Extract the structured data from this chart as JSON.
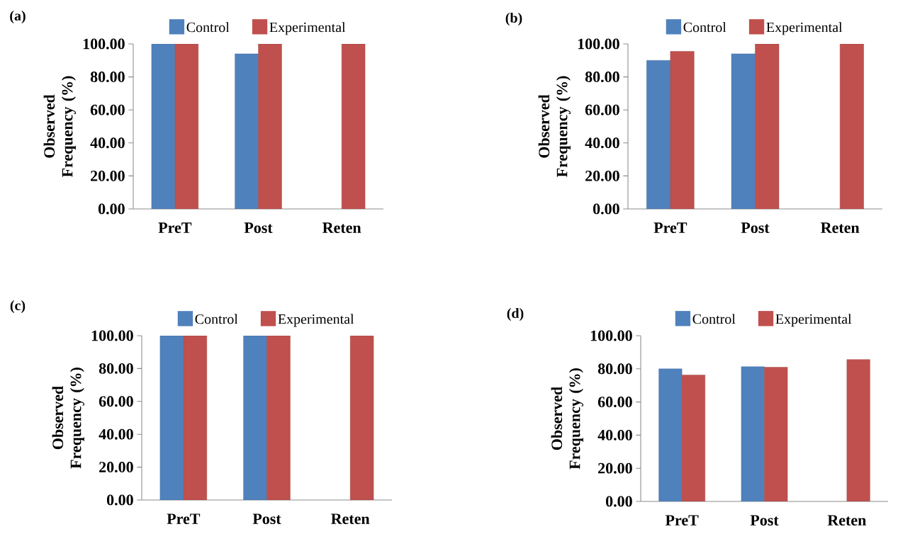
{
  "chart_data": [
    {
      "type": "bar",
      "title": "(a)",
      "ylabel": "Observed Frequency (%)",
      "categories": [
        "PreT",
        "Post",
        "Reten"
      ],
      "series": [
        {
          "name": "Control",
          "color": "#4f81bd",
          "values": [
            100,
            94,
            null
          ]
        },
        {
          "name": "Experimental",
          "color": "#c0504d",
          "values": [
            100,
            100,
            100
          ]
        }
      ],
      "ylim": [
        0,
        100
      ],
      "yticks": [
        {
          "value": 0,
          "label": "0.00"
        },
        {
          "value": 20,
          "label": "20.00"
        },
        {
          "value": 40,
          "label": "40.00"
        },
        {
          "value": 60,
          "label": "60.00"
        },
        {
          "value": 80,
          "label": "80.00"
        },
        {
          "value": 100,
          "label": "100.00"
        }
      ],
      "legend": "top"
    },
    {
      "type": "bar",
      "title": "(b)",
      "ylabel": "Observed Frequency (%)",
      "categories": [
        "PreT",
        "Post",
        "Reten"
      ],
      "series": [
        {
          "name": "Control",
          "color": "#4f81bd",
          "values": [
            90,
            94,
            null
          ]
        },
        {
          "name": "Experimental",
          "color": "#c0504d",
          "values": [
            95.5,
            100,
            100
          ]
        }
      ],
      "ylim": [
        0,
        100
      ],
      "yticks": [
        {
          "value": 0,
          "label": "0.00"
        },
        {
          "value": 20,
          "label": "20.00"
        },
        {
          "value": 40,
          "label": "40.00"
        },
        {
          "value": 60,
          "label": "60.00"
        },
        {
          "value": 80,
          "label": "80.00"
        },
        {
          "value": 100,
          "label": "100.00"
        }
      ],
      "legend": "top"
    },
    {
      "type": "bar",
      "title": "(c)",
      "ylabel": "Observed Frequency (%)",
      "categories": [
        "PreT",
        "Post",
        "Reten"
      ],
      "series": [
        {
          "name": "Control",
          "color": "#4f81bd",
          "values": [
            100,
            100,
            null
          ]
        },
        {
          "name": "Experimental",
          "color": "#c0504d",
          "values": [
            100,
            100,
            100
          ]
        }
      ],
      "ylim": [
        0,
        100
      ],
      "yticks": [
        {
          "value": 0,
          "label": "0.00"
        },
        {
          "value": 20,
          "label": "20.00"
        },
        {
          "value": 40,
          "label": "40.00"
        },
        {
          "value": 60,
          "label": "60.00"
        },
        {
          "value": 80,
          "label": "80.00"
        },
        {
          "value": 100,
          "label": "100.00"
        }
      ],
      "legend": "top"
    },
    {
      "type": "bar",
      "title": "(d)",
      "ylabel": "Observed Frequency (%)",
      "categories": [
        "PreT",
        "Post",
        "Reten"
      ],
      "series": [
        {
          "name": "Control",
          "color": "#4f81bd",
          "values": [
            80,
            81.3,
            null
          ]
        },
        {
          "name": "Experimental",
          "color": "#c0504d",
          "values": [
            76.3,
            81,
            85.7
          ]
        }
      ],
      "ylim": [
        0,
        100
      ],
      "yticks": [
        {
          "value": 0,
          "label": "0.00"
        },
        {
          "value": 20,
          "label": "20.00"
        },
        {
          "value": 40,
          "label": "40.00"
        },
        {
          "value": 60,
          "label": "60.00"
        },
        {
          "value": 80,
          "label": "80.00"
        },
        {
          "value": 100,
          "label": "100.00"
        }
      ],
      "legend": "top"
    }
  ]
}
